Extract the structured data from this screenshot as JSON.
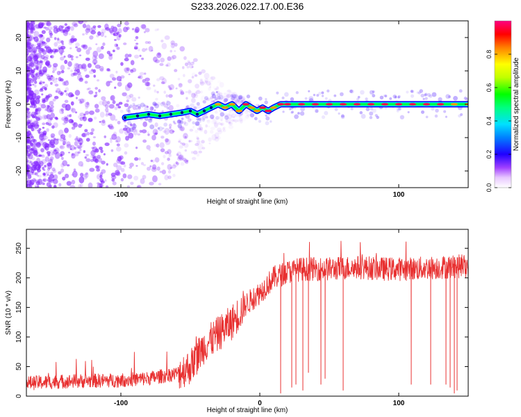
{
  "figure_title": "S233.2026.022.17.00.E36",
  "colors": {
    "snr_line": "#e83030",
    "ridge_core": "#ff0044",
    "ridge_green": "#00ff44",
    "ridge_cyan": "#00e0ff",
    "ridge_blue": "#0000ff",
    "scatter": "#8020ff"
  },
  "chart_data": [
    {
      "type": "heatmap",
      "title": "S233.2026.022.17.00.E36",
      "xlabel": "Height of straight line (km)",
      "ylabel": "Frequency (Hz)",
      "xlim": [
        -168,
        150
      ],
      "ylim": [
        -25,
        25
      ],
      "x_ticks": [
        -100,
        0,
        100
      ],
      "x_tick_labels": [
        "-100",
        "0",
        "100"
      ],
      "y_ticks": [
        -20,
        -10,
        0,
        10,
        20
      ],
      "y_tick_labels": [
        "-20",
        "-10",
        "0",
        "10",
        "20"
      ],
      "colorbar": {
        "label": "Normalized spectral amplitude",
        "range": [
          0,
          1
        ],
        "ticks": [
          0.0,
          0.2,
          0.4,
          0.6,
          0.8
        ],
        "tick_labels": [
          "0.0",
          "0.2",
          "0.4",
          "0.6",
          "0.8"
        ]
      },
      "ridge": {
        "x": [
          -97,
          -88,
          -80,
          -72,
          -64,
          -56,
          -50,
          -45,
          -40,
          -35,
          -30,
          -25,
          -20,
          -15,
          -10,
          -6,
          -2,
          2,
          6,
          10,
          15,
          20,
          30,
          40,
          50,
          60,
          70,
          80,
          90,
          100,
          110,
          120,
          130,
          140,
          150
        ],
        "frequency": [
          -4,
          -3.5,
          -3,
          -3.5,
          -3,
          -2.5,
          -2,
          -3,
          -2,
          -1,
          0,
          -1,
          0,
          -2,
          0,
          -1,
          -2,
          -1,
          -2,
          -1,
          0,
          0,
          0,
          0,
          0,
          0,
          0,
          0,
          0,
          0,
          0,
          0,
          0,
          0,
          0
        ],
        "amplitude": [
          0.2,
          0.25,
          0.25,
          0.3,
          0.3,
          0.35,
          0.3,
          0.35,
          0.4,
          0.5,
          0.7,
          0.8,
          0.85,
          0.75,
          0.9,
          0.8,
          0.85,
          0.9,
          0.9,
          0.85,
          0.95,
          0.95,
          1.0,
          1.0,
          1.0,
          0.95,
          1.0,
          1.0,
          1.0,
          1.0,
          0.95,
          0.9,
          0.95,
          0.85,
          0.7
        ]
      }
    },
    {
      "type": "line",
      "xlabel": "Height of straight line (km)",
      "ylabel": "SNR (10 * v/v)",
      "xlim": [
        -168,
        150
      ],
      "ylim": [
        0,
        282
      ],
      "x_ticks": [
        -100,
        0,
        100
      ],
      "x_tick_labels": [
        "-100",
        "0",
        "100"
      ],
      "y_ticks": [
        0,
        50,
        100,
        150,
        200,
        250
      ],
      "y_tick_labels": [
        "0",
        "50",
        "100",
        "150",
        "200",
        "250"
      ],
      "trend": {
        "x": [
          -168,
          -140,
          -100,
          -80,
          -60,
          -50,
          -40,
          -35,
          -30,
          -20,
          -10,
          0,
          10,
          20,
          30,
          50,
          70,
          90,
          110,
          130,
          150
        ],
        "snr": [
          22,
          25,
          27,
          30,
          38,
          50,
          85,
          95,
          105,
          125,
          155,
          175,
          200,
          210,
          215,
          215,
          218,
          215,
          215,
          218,
          220
        ]
      },
      "dropouts": [
        {
          "x": 15,
          "snr": 5
        },
        {
          "x": 23,
          "snr": 15
        },
        {
          "x": 26,
          "snr": 20
        },
        {
          "x": 31,
          "snr": 10
        },
        {
          "x": 35,
          "snr": 40
        },
        {
          "x": 44,
          "snr": 20
        },
        {
          "x": 47,
          "snr": 30
        },
        {
          "x": 60,
          "snr": 10
        },
        {
          "x": 109,
          "snr": 20
        },
        {
          "x": 123,
          "snr": 20
        },
        {
          "x": 134,
          "snr": 20
        },
        {
          "x": 137,
          "snr": 15
        },
        {
          "x": 140,
          "snr": 5
        },
        {
          "x": 142,
          "snr": 10
        }
      ]
    }
  ]
}
